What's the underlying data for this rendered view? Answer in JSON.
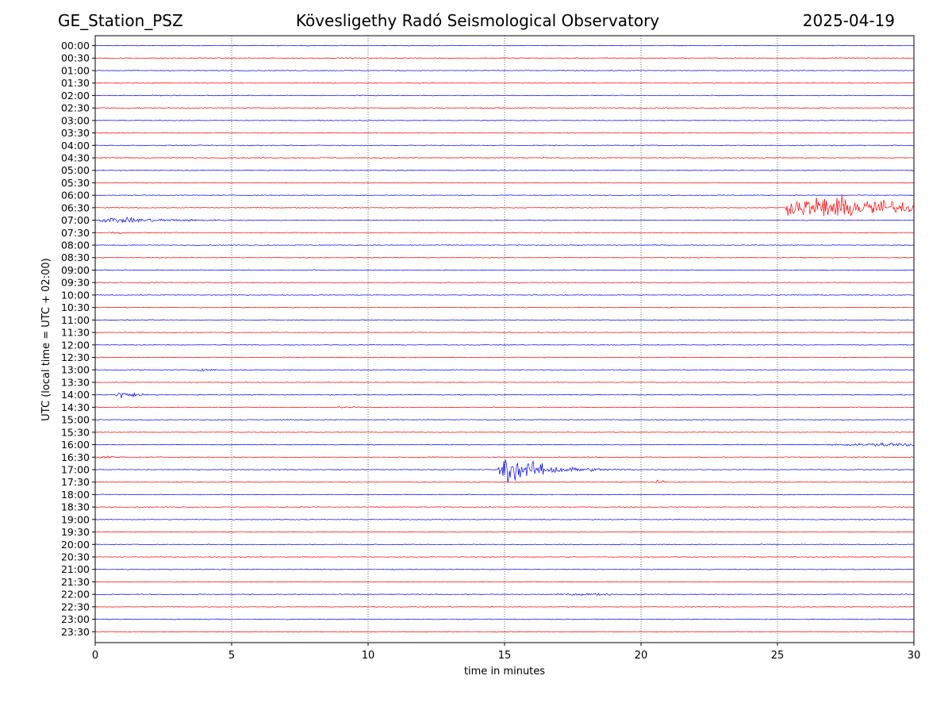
{
  "header": {
    "station": "GE_Station_PSZ",
    "observatory": "Kövesligethy Radó Seismological Observatory",
    "date": "2025-04-19"
  },
  "chart_data": {
    "type": "line",
    "title": "Kövesligethy Radó Seismological Observatory",
    "xlabel": "time in minutes",
    "ylabel": "UTC (local time = UTC + 02:00)",
    "xlim": [
      0,
      30
    ],
    "x_ticks": [
      0,
      5,
      10,
      15,
      20,
      25,
      30
    ],
    "grid": "vertical dotted lines at 5-minute intervals",
    "trace_colors": [
      "#0000ff",
      "#ff0000"
    ],
    "rows": [
      "00:00",
      "00:30",
      "01:00",
      "01:30",
      "02:00",
      "02:30",
      "03:00",
      "03:30",
      "04:00",
      "04:30",
      "05:00",
      "05:30",
      "06:00",
      "06:30",
      "07:00",
      "07:30",
      "08:00",
      "08:30",
      "09:00",
      "09:30",
      "10:00",
      "10:30",
      "11:00",
      "11:30",
      "12:00",
      "12:30",
      "13:00",
      "13:30",
      "14:00",
      "14:30",
      "15:00",
      "15:30",
      "16:00",
      "16:30",
      "17:00",
      "17:30",
      "18:00",
      "18:30",
      "19:00",
      "19:30",
      "20:00",
      "20:30",
      "21:00",
      "21:30",
      "22:00",
      "22:30",
      "23:00",
      "23:30"
    ],
    "noise_amplitude": 0.06,
    "events": [
      {
        "row": "06:30",
        "start": 25.3,
        "end": 30.0,
        "peak": 27.2,
        "amplitude": 1.9,
        "shape": "swarm"
      },
      {
        "row": "07:00",
        "start": 0.0,
        "end": 10.0,
        "peak": 0.5,
        "amplitude": 0.45,
        "shape": "decay"
      },
      {
        "row": "07:30",
        "start": 0.5,
        "end": 1.6,
        "peak": 0.8,
        "amplitude": 0.18,
        "shape": "burst"
      },
      {
        "row": "09:30",
        "start": 1.5,
        "end": 2.6,
        "peak": 2.1,
        "amplitude": 0.16,
        "shape": "burst"
      },
      {
        "row": "09:30",
        "start": 15.0,
        "end": 16.5,
        "peak": 15.4,
        "amplitude": 0.14,
        "shape": "burst"
      },
      {
        "row": "13:00",
        "start": 3.3,
        "end": 4.9,
        "peak": 4.0,
        "amplitude": 0.15,
        "shape": "burst"
      },
      {
        "row": "14:00",
        "start": 0.65,
        "end": 3.5,
        "peak": 0.85,
        "amplitude": 0.65,
        "shape": "decay"
      },
      {
        "row": "14:30",
        "start": 8.5,
        "end": 10.0,
        "peak": 9.3,
        "amplitude": 0.16,
        "shape": "burst"
      },
      {
        "row": "16:00",
        "start": 24.6,
        "end": 30.0,
        "peak": 29.4,
        "amplitude": 0.3,
        "shape": "burst"
      },
      {
        "row": "16:30",
        "start": 0.0,
        "end": 1.4,
        "peak": 0.4,
        "amplitude": 0.18,
        "shape": "burst"
      },
      {
        "row": "17:00",
        "start": 14.75,
        "end": 20.0,
        "peak": 14.95,
        "amplitude": 2.3,
        "shape": "decay"
      },
      {
        "row": "17:30",
        "start": 20.5,
        "end": 22.0,
        "peak": 20.6,
        "amplitude": 0.3,
        "shape": "decay"
      },
      {
        "row": "22:00",
        "start": 15.5,
        "end": 19.0,
        "peak": 18.2,
        "amplitude": 0.17,
        "shape": "burst"
      }
    ]
  }
}
